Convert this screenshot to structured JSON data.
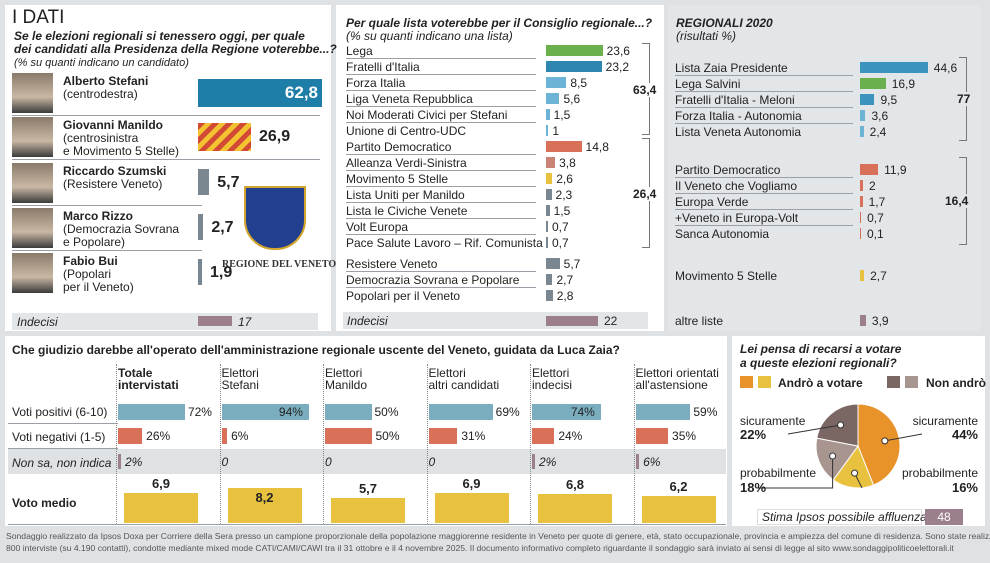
{
  "colors": {
    "blue_dark": "#1f7ea8",
    "blue_mid": "#3c93bd",
    "blue_light": "#6cb3d6",
    "green": "#6ab04c",
    "red": "#d9705a",
    "red_soft": "#c98274",
    "yellow": "#e8c13f",
    "gray": "#7b8790",
    "mauve": "#9c7f8d",
    "orange": "#e8922a",
    "brown_dark": "#7a6662",
    "brown_light": "#a8958f",
    "teal": "#7aaebf"
  },
  "header": {
    "title": "I DATI"
  },
  "candidates": {
    "question": [
      "Se le elezioni regionali si tenessero oggi, per quale",
      "dei candidati alla Presidenza della Regione voterebbe...?"
    ],
    "note": "(% su quanti indicano un candidato)",
    "items": [
      {
        "name": "Alberto Stefani",
        "party": [
          "(centrodestra)"
        ],
        "value": "62,8",
        "v": 62.8
      },
      {
        "name": "Giovanni Manildo",
        "party": [
          "(centrosinistra",
          "e Movimento 5 Stelle)"
        ],
        "value": "26,9",
        "v": 26.9
      },
      {
        "name": "Riccardo Szumski",
        "party": [
          "(Resistere Veneto)"
        ],
        "value": "5,7",
        "v": 5.7
      },
      {
        "name": "Marco Rizzo",
        "party": [
          "(Democrazia Sovrana",
          "e Popolare)"
        ],
        "value": "2,7",
        "v": 2.7
      },
      {
        "name": "Fabio Bui",
        "party": [
          "(Popolari",
          "per il Veneto)"
        ],
        "value": "1,9",
        "v": 1.9
      }
    ],
    "undecided": {
      "label": "Indecisi",
      "value": "17",
      "v": 17
    },
    "logo_text": "REGIONE DEL VENETO"
  },
  "lists": {
    "question": "Per quale lista voterebbe per il Consiglio regionale...?",
    "note": "(% su quanti indicano una lista)",
    "items": [
      {
        "label": "Lega",
        "value": "23,6",
        "v": 23.6,
        "color": "#6ab04c"
      },
      {
        "label": "Fratelli d'Italia",
        "value": "23,2",
        "v": 23.2,
        "color": "#2f86b0"
      },
      {
        "label": "Forza Italia",
        "value": "8,5",
        "v": 8.5,
        "color": "#6cb3d6"
      },
      {
        "label": "Liga Veneta Repubblica",
        "value": "5,6",
        "v": 5.6,
        "color": "#6cb3d6"
      },
      {
        "label": "Noi Moderati Civici per Stefani",
        "value": "1,5",
        "v": 1.5,
        "color": "#6cb3d6"
      },
      {
        "label": "Unione di Centro-UDC",
        "value": "1",
        "v": 1,
        "color": "#6cb3d6"
      },
      {
        "label": "Partito Democratico",
        "value": "14,8",
        "v": 14.8,
        "color": "#d9705a"
      },
      {
        "label": "Alleanza Verdi-Sinistra",
        "value": "3,8",
        "v": 3.8,
        "color": "#c98274"
      },
      {
        "label": "Movimento 5 Stelle",
        "value": "2,6",
        "v": 2.6,
        "color": "#e8c13f"
      },
      {
        "label": "Lista Uniti per Manildo",
        "value": "2,3",
        "v": 2.3,
        "color": "#7b8790"
      },
      {
        "label": "Lista le Civiche Venete",
        "value": "1,5",
        "v": 1.5,
        "color": "#7b8790"
      },
      {
        "label": "Volt Europa",
        "value": "0,7",
        "v": 0.7,
        "color": "#7b8790"
      },
      {
        "label": "Pace Salute Lavoro – Rif. Comunista",
        "value": "0,7",
        "v": 0.7,
        "color": "#7b8790"
      },
      {
        "label": "Resistere Veneto",
        "value": "5,7",
        "v": 5.7,
        "color": "#7b8790"
      },
      {
        "label": "Democrazia Sovrana e Popolare",
        "value": "2,7",
        "v": 2.7,
        "color": "#7b8790"
      },
      {
        "label": "Popolari per il Veneto",
        "value": "2,8",
        "v": 2.8,
        "color": "#7b8790"
      }
    ],
    "group_totals": [
      "63,4",
      "26,4"
    ],
    "undecided": {
      "label": "Indecisi",
      "value": "22",
      "v": 22
    }
  },
  "regionali2020": {
    "title": "REGIONALI 2020",
    "note": "(risultati %)",
    "items": [
      {
        "label": "Lista Zaia Presidente",
        "value": "44,6",
        "v": 44.6,
        "color": "#3c93bd"
      },
      {
        "label": "Lega Salvini",
        "value": "16,9",
        "v": 16.9,
        "color": "#6ab04c"
      },
      {
        "label": "Fratelli d'Italia - Meloni",
        "value": "9,5",
        "v": 9.5,
        "color": "#3c93bd"
      },
      {
        "label": "Forza Italia - Autonomia",
        "value": "3,6",
        "v": 3.6,
        "color": "#6cb3d6"
      },
      {
        "label": "Lista Veneta Autonomia",
        "value": "2,4",
        "v": 2.4,
        "color": "#6cb3d6"
      },
      {
        "label": "Partito Democratico",
        "value": "11,9",
        "v": 11.9,
        "color": "#d9705a"
      },
      {
        "label": "Il Veneto che Vogliamo",
        "value": "2",
        "v": 2,
        "color": "#d9705a"
      },
      {
        "label": "Europa Verde",
        "value": "1,7",
        "v": 1.7,
        "color": "#d9705a"
      },
      {
        "label": "+Veneto in Europa-Volt",
        "value": "0,7",
        "v": 0.7,
        "color": "#d9705a"
      },
      {
        "label": "Sanca Autonomia",
        "value": "0,1",
        "v": 0.1,
        "color": "#d9705a"
      },
      {
        "label": "Movimento 5 Stelle",
        "value": "2,7",
        "v": 2.7,
        "color": "#e8c13f"
      },
      {
        "label": "altre liste",
        "value": "3,9",
        "v": 3.9,
        "color": "#9c7f8d"
      }
    ],
    "group_totals": [
      "77",
      "16,4"
    ]
  },
  "judgement": {
    "question": "Che giudizio darebbe all'operato dell'amministrazione regionale uscente del Veneto, guidata da Luca Zaia?",
    "row_labels": [
      "Voti positivi (6-10)",
      "Voti negativi (1-5)",
      "Non sa, non indica",
      "Voto medio"
    ],
    "columns": [
      {
        "head": [
          "Totale",
          "intervistati"
        ],
        "pos": "72%",
        "p": 72,
        "neg": "26%",
        "n": 26,
        "ns": "2%",
        "s": 2,
        "avg": "6,9",
        "a": 6.9
      },
      {
        "head": [
          "Elettori",
          "Stefani"
        ],
        "pos": "94%",
        "p": 94,
        "neg": "6%",
        "n": 6,
        "ns": "0",
        "s": 0,
        "avg": "8,2",
        "a": 8.2
      },
      {
        "head": [
          "Elettori",
          "Manildo"
        ],
        "pos": "50%",
        "p": 50,
        "neg": "50%",
        "n": 50,
        "ns": "0",
        "s": 0,
        "avg": "5,7",
        "a": 5.7
      },
      {
        "head": [
          "Elettori",
          "altri candidati"
        ],
        "pos": "69%",
        "p": 69,
        "neg": "31%",
        "n": 31,
        "ns": "0",
        "s": 0,
        "avg": "6,9",
        "a": 6.9
      },
      {
        "head": [
          "Elettori",
          "indecisi"
        ],
        "pos": "74%",
        "p": 74,
        "neg": "24%",
        "n": 24,
        "ns": "2%",
        "s": 2,
        "avg": "6,8",
        "a": 6.8
      },
      {
        "head": [
          "Elettori orientati",
          "all'astensione"
        ],
        "pos": "59%",
        "p": 59,
        "neg": "35%",
        "n": 35,
        "ns": "6%",
        "s": 6,
        "avg": "6,2",
        "a": 6.2
      }
    ]
  },
  "turnout": {
    "question": [
      "Lei pensa di recarsi a votare",
      "a queste elezioni regionali?"
    ],
    "legend_go": "Andrò a votare",
    "legend_not": "Non andrò",
    "slices": [
      {
        "label": "sicuramente",
        "value": "44%",
        "v": 44,
        "color": "#e8922a"
      },
      {
        "label": "probabilmente",
        "value": "16%",
        "v": 16,
        "color": "#e8c13f"
      },
      {
        "label": "probabilmente",
        "value": "18%",
        "v": 18,
        "color": "#a8958f"
      },
      {
        "label": "sicuramente",
        "value": "22%",
        "v": 22,
        "color": "#7a6662"
      }
    ],
    "estimate_label": "Stima Ipsos possibile affluenza",
    "estimate_value": "48"
  },
  "footer": [
    "Sondaggio realizzato da Ipsos Doxa per Corriere della Sera presso un campione proporzionale della popolazione  maggiorenne residente in Veneto per quote di genere, età, stato occupazionale, provincia e ampiezza del comune di residenza. Sono state realizzate",
    "800 interviste (su 4.190 contatti), condotte mediante mixed mode CATI/CAMI/CAWI tra il 31 ottobre e il 4 novembre 2025.  Il documento informativo completo riguardante il sondaggio sarà inviato ai sensi di legge al sito www.sondaggipoliticoelettorali.it"
  ]
}
